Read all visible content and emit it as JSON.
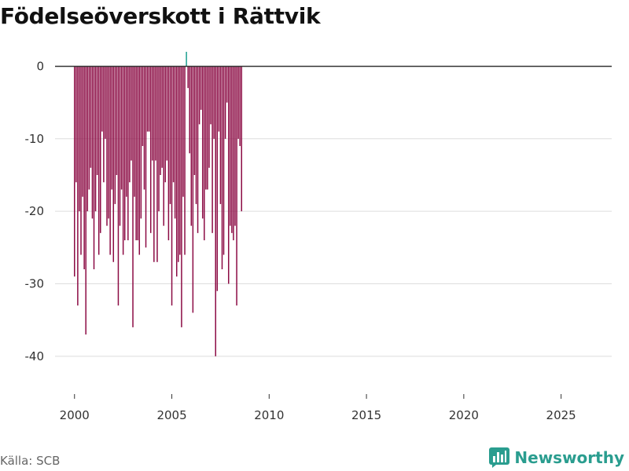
{
  "title": "Födelseöverskott i Rättvik",
  "source": "Källa: SCB",
  "brand": "Newsworthy",
  "colors": {
    "negative": "#8b0a43",
    "positive": "#1a9e8f",
    "grid": "#dddddd",
    "zero_line": "#333333",
    "text": "#333333"
  },
  "chart_data": {
    "type": "bar",
    "title": "Födelseöverskott i Rättvik",
    "xlabel": "",
    "ylabel": "",
    "frequency": "monthly",
    "start": "2000-01",
    "xlim": [
      1999.0,
      2027.6
    ],
    "ylim": [
      -45,
      2
    ],
    "xticks": [
      2000,
      2005,
      2010,
      2015,
      2020,
      2025
    ],
    "yticks": [
      0,
      -10,
      -20,
      -30,
      -40
    ],
    "ytick_labels": [
      "0",
      "-10",
      "-20",
      "-30",
      "-40"
    ],
    "legend": "none",
    "values": [
      -29,
      -16,
      -33,
      -20,
      -26,
      -18,
      -28,
      -37,
      -20,
      -17,
      -14,
      -21,
      -28,
      -20,
      -15,
      -26,
      -23,
      -9,
      -16,
      -10,
      -22,
      -21,
      -26,
      -17,
      -27,
      -19,
      -15,
      -33,
      -22,
      -17,
      -26,
      -24,
      -18,
      -24,
      -16,
      -13,
      -36,
      -18,
      -24,
      -24,
      -26,
      -21,
      -11,
      -17,
      -25,
      -9,
      -9,
      -23,
      -13,
      -27,
      -13,
      -27,
      -20,
      -15,
      -14,
      -22,
      -16,
      -13,
      -24,
      -19,
      -33,
      -16,
      -21,
      -29,
      -27,
      -26,
      -36,
      -18,
      -26,
      2,
      -3,
      -12,
      -22,
      -34,
      -15,
      -19,
      -23,
      -8,
      -6,
      -21,
      -24,
      -17,
      -17,
      -14,
      -8,
      -23,
      -10,
      -40,
      -31,
      -9,
      -19,
      -28,
      -26,
      -10,
      -5,
      -30,
      -22,
      -23,
      -24,
      -22,
      -33,
      -10,
      -11,
      -20
    ]
  }
}
